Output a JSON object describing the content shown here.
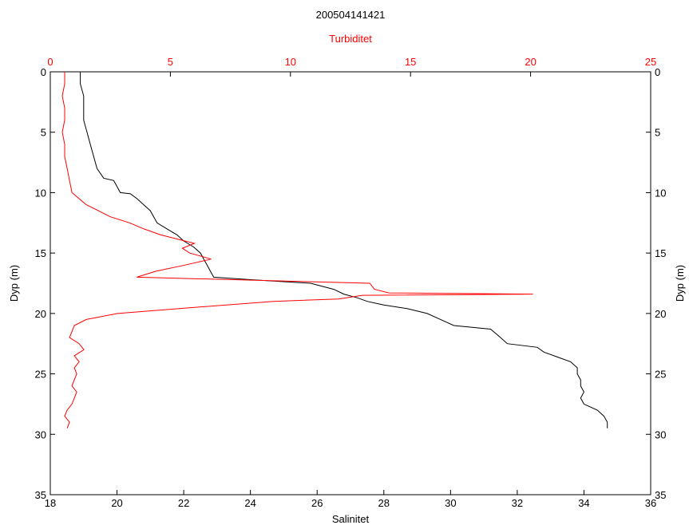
{
  "chart_data": {
    "type": "line",
    "title": "200504141421",
    "xlabel": "Salinitet",
    "x2label": "Turbiditet",
    "ylabel": "Dyp (m)",
    "ylabel_right": "Dyp (m)",
    "xlim": [
      18,
      36
    ],
    "x2lim": [
      0,
      25
    ],
    "ylim": [
      0,
      35
    ],
    "y_reversed": true,
    "grid": false,
    "x_ticks": [
      "18",
      "20",
      "22",
      "24",
      "26",
      "28",
      "30",
      "32",
      "34",
      "36"
    ],
    "x2_ticks": [
      "0",
      "5",
      "10",
      "15",
      "20",
      "25"
    ],
    "y_ticks": [
      "0",
      "5",
      "10",
      "15",
      "20",
      "25",
      "30",
      "35"
    ],
    "colors": {
      "salinity": "#000000",
      "turbidity": "#ff0000",
      "axis_top": "#ff0000"
    },
    "series": [
      {
        "axis": "bottom",
        "color": "#000000",
        "points": [
          [
            18.9,
            0
          ],
          [
            18.9,
            1
          ],
          [
            19.0,
            2
          ],
          [
            19.0,
            3
          ],
          [
            19.0,
            4
          ],
          [
            19.1,
            5
          ],
          [
            19.2,
            6
          ],
          [
            19.3,
            7
          ],
          [
            19.4,
            8
          ],
          [
            19.6,
            8.8
          ],
          [
            19.9,
            9
          ],
          [
            20.0,
            9.5
          ],
          [
            20.1,
            10
          ],
          [
            20.4,
            10.1
          ],
          [
            20.6,
            10.5
          ],
          [
            20.8,
            11
          ],
          [
            21.0,
            11.5
          ],
          [
            21.1,
            12
          ],
          [
            21.2,
            12.5
          ],
          [
            21.5,
            13
          ],
          [
            21.8,
            13.5
          ],
          [
            22.0,
            14
          ],
          [
            22.3,
            14.5
          ],
          [
            22.5,
            15
          ],
          [
            22.6,
            15.5
          ],
          [
            22.7,
            16
          ],
          [
            22.8,
            16.5
          ],
          [
            22.9,
            17
          ],
          [
            24.0,
            17.2
          ],
          [
            25.8,
            17.5
          ],
          [
            26.5,
            18
          ],
          [
            26.8,
            18.4
          ],
          [
            27.2,
            18.7
          ],
          [
            27.5,
            19
          ],
          [
            28.0,
            19.3
          ],
          [
            28.7,
            19.6
          ],
          [
            29.3,
            20
          ],
          [
            29.7,
            20.5
          ],
          [
            30.1,
            21
          ],
          [
            31.2,
            21.3
          ],
          [
            31.5,
            22
          ],
          [
            31.7,
            22.5
          ],
          [
            32.6,
            22.8
          ],
          [
            32.8,
            23.2
          ],
          [
            33.2,
            23.6
          ],
          [
            33.6,
            24
          ],
          [
            33.8,
            24.5
          ],
          [
            33.8,
            25
          ],
          [
            33.9,
            25.5
          ],
          [
            33.9,
            26
          ],
          [
            34.0,
            26.5
          ],
          [
            33.9,
            27
          ],
          [
            34.0,
            27.5
          ],
          [
            34.4,
            28
          ],
          [
            34.6,
            28.5
          ],
          [
            34.7,
            29
          ],
          [
            34.7,
            29.5
          ]
        ]
      },
      {
        "axis": "top",
        "color": "#ff0000",
        "points": [
          [
            0.6,
            0
          ],
          [
            0.6,
            1
          ],
          [
            0.5,
            2
          ],
          [
            0.6,
            3
          ],
          [
            0.6,
            4
          ],
          [
            0.5,
            5
          ],
          [
            0.6,
            6
          ],
          [
            0.6,
            7
          ],
          [
            0.7,
            8
          ],
          [
            0.8,
            9
          ],
          [
            0.9,
            10
          ],
          [
            1.2,
            10.5
          ],
          [
            1.5,
            11
          ],
          [
            2.0,
            11.5
          ],
          [
            2.5,
            12
          ],
          [
            3.3,
            12.5
          ],
          [
            3.9,
            13
          ],
          [
            4.6,
            13.5
          ],
          [
            5.6,
            14
          ],
          [
            6.0,
            14.2
          ],
          [
            5.5,
            14.6
          ],
          [
            5.8,
            15
          ],
          [
            6.7,
            15.5
          ],
          [
            5.6,
            16
          ],
          [
            4.4,
            16.5
          ],
          [
            3.6,
            17
          ],
          [
            13.3,
            17.5
          ],
          [
            13.5,
            18
          ],
          [
            14.1,
            18.3
          ],
          [
            20.1,
            18.4
          ],
          [
            13.0,
            18.5
          ],
          [
            12.0,
            18.8
          ],
          [
            9.3,
            19
          ],
          [
            6.0,
            19.5
          ],
          [
            2.8,
            20
          ],
          [
            1.5,
            20.5
          ],
          [
            1.0,
            21
          ],
          [
            0.9,
            21.5
          ],
          [
            0.8,
            22
          ],
          [
            1.2,
            22.5
          ],
          [
            1.4,
            23
          ],
          [
            1.0,
            23.5
          ],
          [
            1.2,
            24
          ],
          [
            1.0,
            24.5
          ],
          [
            1.1,
            25
          ],
          [
            1.0,
            25.5
          ],
          [
            0.9,
            26
          ],
          [
            1.1,
            26.5
          ],
          [
            1.0,
            27
          ],
          [
            0.9,
            27.5
          ],
          [
            0.7,
            28
          ],
          [
            0.6,
            28.5
          ],
          [
            0.8,
            29
          ],
          [
            0.7,
            29.5
          ]
        ]
      }
    ]
  }
}
